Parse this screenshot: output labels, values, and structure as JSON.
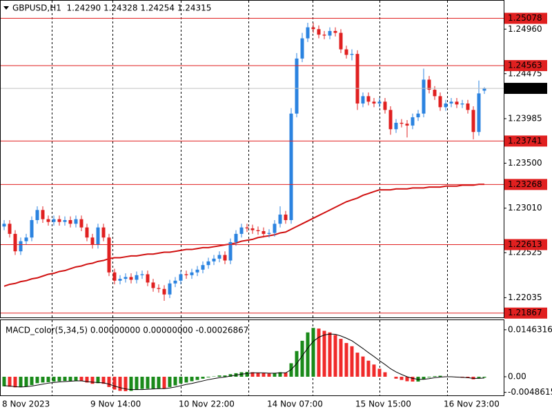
{
  "chart_data": [
    {
      "type": "candlestick",
      "title": "GBPUSD,H1  1.24290 1.24328 1.24254 1.24315",
      "categories": [
        "8 Nov 2023",
        null,
        null,
        null,
        null,
        null,
        null,
        null,
        null,
        null,
        null,
        null,
        null,
        null,
        null,
        null,
        "9 Nov 14:00",
        null,
        null,
        null,
        null,
        null,
        null,
        null,
        null,
        null,
        null,
        null,
        null,
        null,
        null,
        null,
        "10 Nov 22:00",
        null,
        null,
        null,
        null,
        null,
        null,
        null,
        null,
        null,
        null,
        null,
        null,
        null,
        null,
        null,
        "14 Nov 07:00",
        null,
        null,
        null,
        null,
        null,
        null,
        null,
        null,
        null,
        null,
        null,
        null,
        null,
        null,
        null,
        "15 Nov 15:00",
        null,
        null,
        null,
        null,
        null,
        null,
        null,
        null,
        null,
        null,
        null,
        null,
        null,
        null,
        null,
        "16 Nov 23:00",
        null,
        null,
        null,
        null,
        null,
        null,
        null
      ],
      "open": [
        1.2281,
        1.2284,
        1.2273,
        1.2254,
        1.2265,
        1.2269,
        1.2288,
        1.2299,
        1.2289,
        1.2286,
        1.2289,
        1.2286,
        1.2288,
        1.2284,
        1.2289,
        1.228,
        1.2269,
        1.2261,
        1.228,
        1.2269,
        1.2231,
        1.2222,
        1.2224,
        1.2226,
        1.2223,
        1.2228,
        1.2229,
        1.222,
        1.2214,
        1.2213,
        1.2207,
        1.2219,
        1.2222,
        1.2229,
        1.2228,
        1.2231,
        1.2234,
        1.2239,
        1.2243,
        1.2246,
        1.225,
        1.2244,
        1.2264,
        1.2273,
        1.228,
        1.2279,
        1.2277,
        1.2276,
        1.2273,
        1.2274,
        1.2284,
        1.2294,
        1.2288,
        1.2404,
        1.2464,
        1.2486,
        1.2498,
        1.2496,
        1.249,
        1.2489,
        1.2494,
        1.2492,
        1.2474,
        1.2468,
        1.2469,
        1.2415,
        1.2423,
        1.2417,
        1.2415,
        1.2417,
        1.2408,
        1.2387,
        1.2394,
        1.2393,
        1.2391,
        1.24,
        1.2404,
        1.2441,
        1.243,
        1.2423,
        1.2411,
        1.2415,
        1.2417,
        1.2414,
        1.2415,
        1.2408,
        1.2384,
        1.2429
      ],
      "high": [
        1.2288,
        1.2288,
        1.2277,
        1.2269,
        1.2273,
        1.2292,
        1.2303,
        1.2303,
        1.2293,
        1.2293,
        1.2293,
        1.2292,
        1.2292,
        1.2293,
        1.2293,
        1.2284,
        1.2273,
        1.2284,
        1.2284,
        1.2273,
        1.2235,
        1.2228,
        1.223,
        1.223,
        1.2232,
        1.2233,
        1.2233,
        1.2224,
        1.2218,
        1.2217,
        1.2223,
        1.2226,
        1.2233,
        1.2233,
        1.2235,
        1.2238,
        1.2243,
        1.2247,
        1.225,
        1.2254,
        1.2254,
        1.2268,
        1.2277,
        1.2284,
        1.2284,
        1.2283,
        1.2281,
        1.228,
        1.2278,
        1.2288,
        1.2303,
        1.2298,
        1.241,
        1.247,
        1.2492,
        1.2503,
        1.2503,
        1.25,
        1.2494,
        1.2498,
        1.2498,
        1.2496,
        1.2478,
        1.2474,
        1.2473,
        1.2427,
        1.2427,
        1.2421,
        1.2421,
        1.2421,
        1.2412,
        1.2398,
        1.2398,
        1.2397,
        1.2404,
        1.2408,
        1.2453,
        1.2445,
        1.2434,
        1.2427,
        1.2419,
        1.2421,
        1.2421,
        1.2419,
        1.2419,
        1.2412,
        1.244,
        1.24328
      ],
      "low": [
        1.2277,
        1.2269,
        1.225,
        1.225,
        1.2261,
        1.2265,
        1.2284,
        1.2285,
        1.2282,
        1.2282,
        1.2282,
        1.2282,
        1.228,
        1.228,
        1.2276,
        1.2265,
        1.2257,
        1.2257,
        1.2265,
        1.2227,
        1.2218,
        1.2218,
        1.222,
        1.2219,
        1.2219,
        1.2224,
        1.2216,
        1.221,
        1.2209,
        1.22,
        1.2203,
        1.2215,
        1.2218,
        1.2224,
        1.2224,
        1.2227,
        1.223,
        1.2235,
        1.2239,
        1.2242,
        1.224,
        1.224,
        1.226,
        1.2269,
        1.2275,
        1.2273,
        1.2272,
        1.2269,
        1.2269,
        1.227,
        1.228,
        1.2284,
        1.2284,
        1.24,
        1.246,
        1.2482,
        1.2492,
        1.2486,
        1.2485,
        1.2485,
        1.2488,
        1.247,
        1.2464,
        1.2462,
        1.2408,
        1.2411,
        1.2413,
        1.2411,
        1.2411,
        1.2404,
        1.2381,
        1.2383,
        1.2389,
        1.2378,
        1.2387,
        1.2396,
        1.24,
        1.2426,
        1.2419,
        1.2407,
        1.2407,
        1.2411,
        1.241,
        1.241,
        1.2404,
        1.2376,
        1.238,
        1.24254
      ],
      "close": [
        1.2284,
        1.2273,
        1.2254,
        1.2265,
        1.2269,
        1.2288,
        1.2299,
        1.2289,
        1.2286,
        1.2289,
        1.2286,
        1.2288,
        1.2284,
        1.2289,
        1.228,
        1.2269,
        1.2261,
        1.228,
        1.2269,
        1.2231,
        1.2222,
        1.2224,
        1.2226,
        1.2223,
        1.2228,
        1.2229,
        1.222,
        1.2214,
        1.2213,
        1.2207,
        1.2219,
        1.2222,
        1.2229,
        1.2228,
        1.2231,
        1.2234,
        1.2239,
        1.2243,
        1.2246,
        1.225,
        1.2244,
        1.2264,
        1.2273,
        1.228,
        1.2279,
        1.2277,
        1.2276,
        1.2273,
        1.2274,
        1.2284,
        1.2294,
        1.2288,
        1.2404,
        1.2464,
        1.2486,
        1.2498,
        1.2496,
        1.249,
        1.2489,
        1.2494,
        1.2492,
        1.2474,
        1.2468,
        1.2469,
        1.2415,
        1.2423,
        1.2417,
        1.2415,
        1.2417,
        1.2408,
        1.2387,
        1.2394,
        1.2393,
        1.2391,
        1.24,
        1.2404,
        1.2441,
        1.243,
        1.2423,
        1.2411,
        1.2415,
        1.2417,
        1.2414,
        1.2415,
        1.2408,
        1.2384,
        1.2426,
        1.24315
      ],
      "up_color": "#2b83e0",
      "down_color": "#e02020",
      "overlays": [
        {
          "color": "#d01010",
          "values": [
            1.2216,
            1.2218,
            1.2219,
            1.2221,
            1.2222,
            1.2224,
            1.2225,
            1.2227,
            1.2229,
            1.223,
            1.2232,
            1.2233,
            1.2235,
            1.2237,
            1.2238,
            1.224,
            1.2241,
            1.2243,
            1.2244,
            1.2246,
            1.2247,
            1.2247,
            1.2248,
            1.2249,
            1.2249,
            1.225,
            1.2251,
            1.2251,
            1.2252,
            1.2253,
            1.2253,
            1.2254,
            1.2255,
            1.2256,
            1.2256,
            1.2257,
            1.2258,
            1.2258,
            1.2259,
            1.226,
            1.2261,
            1.2262,
            1.2263,
            1.2265,
            1.2266,
            1.2267,
            1.2269,
            1.227,
            1.2271,
            1.2272,
            1.2274,
            1.2275,
            1.2278,
            1.2281,
            1.2284,
            1.2287,
            1.229,
            1.2293,
            1.2296,
            1.2299,
            1.2302,
            1.2305,
            1.2308,
            1.231,
            1.2312,
            1.2315,
            1.2317,
            1.2319,
            1.2321,
            1.2321,
            1.2321,
            1.2322,
            1.2322,
            1.2322,
            1.2323,
            1.2323,
            1.2323,
            1.2324,
            1.2324,
            1.2324,
            1.2325,
            1.2325,
            1.2325,
            1.2326,
            1.2326,
            1.2326,
            1.2327,
            1.2327
          ]
        }
      ],
      "hlines": [
        {
          "value": 1.25078,
          "color": "#e02020"
        },
        {
          "value": 1.24563,
          "color": "#e02020"
        },
        {
          "value": 1.23741,
          "color": "#e02020"
        },
        {
          "value": 1.23268,
          "color": "#e02020"
        },
        {
          "value": 1.22613,
          "color": "#e02020"
        },
        {
          "value": 1.21867,
          "color": "#e02020"
        }
      ],
      "current_price": {
        "value": 1.24315,
        "color": "#000000",
        "line_color": "#c0c0c0"
      },
      "ylim": [
        1.2182,
        1.2524
      ],
      "yticks": [
        {
          "value": 1.2496,
          "label": "1.24960"
        },
        1.24475,
        1.23985,
        {
          "value": 1.235,
          "label": "1.23500"
        },
        {
          "value": 1.2301,
          "label": "1.23010"
        },
        1.22525,
        1.22035
      ]
    },
    {
      "type": "macd",
      "title": "MACD_color(5,34,5) 0.00000000 0.00000000 -0.00026867",
      "values": [
        -0.003,
        -0.0031,
        -0.0033,
        -0.0032,
        -0.003,
        -0.0026,
        -0.002,
        -0.0018,
        -0.0017,
        -0.0015,
        -0.0014,
        -0.0013,
        -0.0013,
        -0.0012,
        -0.0014,
        -0.0018,
        -0.0022,
        -0.002,
        -0.0022,
        -0.0032,
        -0.004,
        -0.0044,
        -0.0045,
        -0.0044,
        -0.0041,
        -0.0038,
        -0.0037,
        -0.0037,
        -0.0036,
        -0.0037,
        -0.0032,
        -0.0027,
        -0.0021,
        -0.0018,
        -0.0014,
        -0.001,
        -0.0006,
        -0.0002,
        0.0001,
        0.0004,
        0.0004,
        0.0008,
        0.0011,
        0.0014,
        0.0015,
        0.0014,
        0.0013,
        0.0011,
        0.001,
        0.0011,
        0.0014,
        0.0013,
        0.0042,
        0.008,
        0.0112,
        0.0138,
        0.0152,
        0.015,
        0.0143,
        0.0138,
        0.013,
        0.0118,
        0.0105,
        0.0095,
        0.0075,
        0.0063,
        0.005,
        0.0038,
        0.0025,
        0.0014,
        0,
        -0.0006,
        -0.001,
        -0.0014,
        -0.0015,
        -0.0015,
        -0.0008,
        -0.0002,
        0.0002,
        0.0003,
        0.0001,
        -0.0001,
        -0.0002,
        -0.0003,
        -0.0004,
        -0.0008,
        -0.0004,
        -0.00026867
      ],
      "signal": [
        -0.0028,
        -0.0029,
        -0.0031,
        -0.0032,
        -0.0031,
        -0.0029,
        -0.0026,
        -0.0023,
        -0.002,
        -0.0018,
        -0.0016,
        -0.0015,
        -0.0014,
        -0.0013,
        -0.0013,
        -0.0015,
        -0.0017,
        -0.0018,
        -0.0019,
        -0.0023,
        -0.0029,
        -0.0034,
        -0.0038,
        -0.004,
        -0.004,
        -0.004,
        -0.0039,
        -0.0038,
        -0.0037,
        -0.0037,
        -0.0035,
        -0.0032,
        -0.0028,
        -0.0024,
        -0.0021,
        -0.0017,
        -0.0013,
        -0.0009,
        -0.0006,
        -0.0003,
        -0.0001,
        0.0002,
        0.0005,
        0.0008,
        0.001,
        0.0012,
        0.0012,
        0.0012,
        0.0011,
        0.0011,
        0.0012,
        0.0012,
        0.0022,
        0.0041,
        0.0065,
        0.0089,
        0.011,
        0.0123,
        0.013,
        0.0133,
        0.0132,
        0.0127,
        0.012,
        0.0112,
        0.01,
        0.0088,
        0.0075,
        0.0063,
        0.005,
        0.0038,
        0.0025,
        0.0015,
        0.0007,
        0,
        -0.0005,
        -0.0008,
        -0.0008,
        -0.0006,
        -0.0003,
        -0.0001,
        0,
        0,
        -0.0001,
        -0.0002,
        -0.0003,
        -0.0005,
        -0.0005,
        -0.0004
      ],
      "up_color": "#1a8a1a",
      "down_color": "#f02a2a",
      "signal_color": "#000000",
      "ylim": [
        -0.0058,
        0.0174
      ],
      "yticks": [
        0.0146316,
        {
          "value": 0,
          "label": "0.00"
        },
        -0.0048615
      ]
    }
  ]
}
